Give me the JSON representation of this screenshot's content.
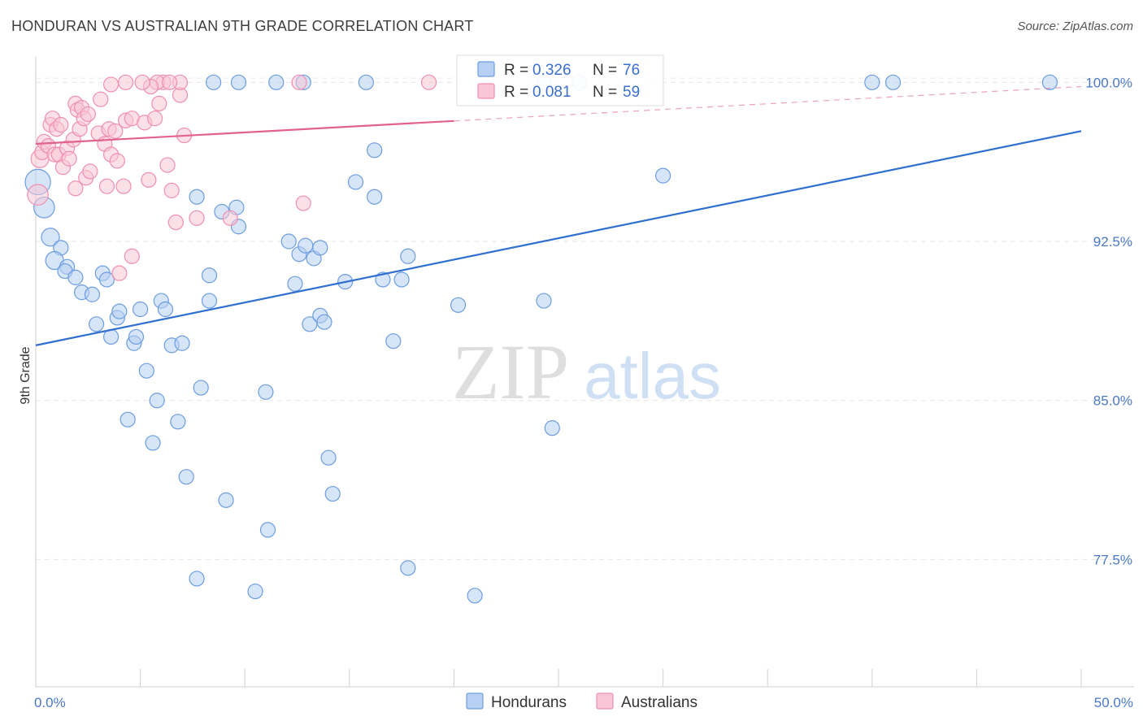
{
  "title": "HONDURAN VS AUSTRALIAN 9TH GRADE CORRELATION CHART",
  "source": "Source: ZipAtlas.com",
  "watermark": {
    "zip": "ZIP",
    "atlas": "atlas"
  },
  "chart_data": {
    "type": "scatter",
    "ylabel": "9th Grade",
    "xlim": [
      0,
      50
    ],
    "ylim": [
      71.5,
      101.2
    ],
    "x_ticks": [
      {
        "value": 0,
        "label": "0.0%"
      },
      {
        "value": 50,
        "label": "50.0%"
      }
    ],
    "x_minor_ticks": [
      0,
      5,
      10,
      15,
      20,
      25,
      30,
      35,
      40,
      45,
      50
    ],
    "y_ticks": [
      {
        "value": 100,
        "label": "100.0%"
      },
      {
        "value": 92.5,
        "label": "92.5%"
      },
      {
        "value": 85,
        "label": "85.0%"
      },
      {
        "value": 77.5,
        "label": "77.5%"
      }
    ],
    "grid": true,
    "legend_placement": "top-center",
    "series": [
      {
        "name": "Hondurans",
        "color": "#6c9de0",
        "fill": "#b7cff2",
        "line_color": "#2f6fcf",
        "R": "0.326",
        "N": "76",
        "trend": {
          "x": [
            0,
            50
          ],
          "y": [
            87.6,
            97.7
          ],
          "dashed_from": null
        },
        "points": [
          [
            0.1,
            95.3,
            3
          ],
          [
            0.4,
            94.1,
            2
          ],
          [
            0.7,
            92.7,
            1.5
          ],
          [
            1.2,
            92.2,
            1
          ],
          [
            0.9,
            91.6,
            1.5
          ],
          [
            1.5,
            91.3,
            1
          ],
          [
            1.4,
            91.1,
            1
          ],
          [
            1.9,
            90.8,
            1
          ],
          [
            2.2,
            90.1,
            1
          ],
          [
            2.7,
            90.0,
            1
          ],
          [
            3.2,
            91.0,
            1
          ],
          [
            3.4,
            90.7,
            1
          ],
          [
            3.9,
            88.9,
            1
          ],
          [
            2.9,
            88.6,
            1
          ],
          [
            4.0,
            89.2,
            1
          ],
          [
            5.0,
            89.3,
            1
          ],
          [
            3.6,
            88.0,
            1
          ],
          [
            4.7,
            87.7,
            1
          ],
          [
            4.8,
            88.0,
            1
          ],
          [
            6.0,
            89.7,
            1
          ],
          [
            6.2,
            89.3,
            1
          ],
          [
            6.5,
            87.6,
            1
          ],
          [
            7.0,
            87.7,
            1
          ],
          [
            5.3,
            86.4,
            1
          ],
          [
            5.8,
            85.0,
            1
          ],
          [
            4.4,
            84.1,
            1
          ],
          [
            5.6,
            83.0,
            1
          ],
          [
            6.8,
            84.0,
            1
          ],
          [
            7.7,
            94.6,
            1
          ],
          [
            8.9,
            93.9,
            1
          ],
          [
            9.6,
            94.1,
            1
          ],
          [
            9.7,
            93.2,
            1
          ],
          [
            8.3,
            90.9,
            1
          ],
          [
            8.3,
            89.7,
            1
          ],
          [
            7.9,
            85.6,
            1
          ],
          [
            7.2,
            81.4,
            1
          ],
          [
            9.1,
            80.3,
            1
          ],
          [
            11.0,
            85.4,
            1
          ],
          [
            11.1,
            78.9,
            1
          ],
          [
            10.5,
            76.0,
            1
          ],
          [
            7.7,
            76.6,
            1
          ],
          [
            11.5,
            100.0,
            1
          ],
          [
            12.8,
            100.0,
            1
          ],
          [
            12.1,
            92.5,
            1
          ],
          [
            12.4,
            90.5,
            1
          ],
          [
            12.6,
            91.9,
            1
          ],
          [
            12.9,
            92.3,
            1
          ],
          [
            13.3,
            91.7,
            1
          ],
          [
            13.1,
            88.6,
            1
          ],
          [
            13.6,
            89.0,
            1
          ],
          [
            13.8,
            88.7,
            1
          ],
          [
            13.6,
            92.2,
            1
          ],
          [
            14.0,
            82.3,
            1
          ],
          [
            14.2,
            80.6,
            1
          ],
          [
            14.8,
            90.6,
            1
          ],
          [
            15.3,
            95.3,
            1
          ],
          [
            15.8,
            100.0,
            1
          ],
          [
            16.2,
            96.8,
            1
          ],
          [
            16.2,
            94.6,
            1
          ],
          [
            16.6,
            90.7,
            1
          ],
          [
            17.1,
            87.8,
            1
          ],
          [
            17.5,
            90.7,
            1
          ],
          [
            17.8,
            91.8,
            1
          ],
          [
            17.8,
            77.1,
            1
          ],
          [
            20.2,
            89.5,
            1
          ],
          [
            21.0,
            75.8,
            1
          ],
          [
            24.3,
            100.0,
            1
          ],
          [
            24.3,
            89.7,
            1
          ],
          [
            24.7,
            83.7,
            1
          ],
          [
            26.0,
            100.0,
            1
          ],
          [
            30.0,
            95.6,
            1
          ],
          [
            40.0,
            100.0,
            1
          ],
          [
            41.0,
            100.0,
            1
          ],
          [
            48.5,
            100.0,
            1
          ],
          [
            8.5,
            100.0,
            1
          ],
          [
            9.7,
            100.0,
            1
          ]
        ]
      },
      {
        "name": "Australians",
        "color": "#ef8fb0",
        "fill": "#f8c6d6",
        "line_color": "#e2628e",
        "R": "0.081",
        "N": "59",
        "trend": {
          "x": [
            0,
            50
          ],
          "y": [
            97.1,
            99.8
          ],
          "dashed_from": 20
        },
        "points": [
          [
            0.1,
            94.7,
            2
          ],
          [
            0.2,
            96.4,
            1.5
          ],
          [
            0.3,
            96.7,
            1
          ],
          [
            0.4,
            97.2,
            1
          ],
          [
            0.6,
            97.0,
            1
          ],
          [
            0.7,
            98.0,
            1
          ],
          [
            0.8,
            98.3,
            1
          ],
          [
            0.9,
            96.6,
            1
          ],
          [
            1.0,
            97.8,
            1
          ],
          [
            1.1,
            96.6,
            1
          ],
          [
            1.2,
            98.0,
            1
          ],
          [
            1.3,
            96.0,
            1
          ],
          [
            1.5,
            96.9,
            1
          ],
          [
            1.6,
            96.4,
            1
          ],
          [
            1.8,
            97.3,
            1
          ],
          [
            1.9,
            99.0,
            1
          ],
          [
            2.0,
            98.7,
            1
          ],
          [
            2.1,
            97.8,
            1
          ],
          [
            2.2,
            98.8,
            1
          ],
          [
            2.3,
            98.3,
            1
          ],
          [
            2.4,
            95.5,
            1
          ],
          [
            1.9,
            95.0,
            1
          ],
          [
            2.5,
            98.5,
            1
          ],
          [
            2.6,
            95.8,
            1
          ],
          [
            3.0,
            97.6,
            1
          ],
          [
            3.1,
            99.2,
            1
          ],
          [
            3.3,
            97.1,
            1
          ],
          [
            3.4,
            95.1,
            1
          ],
          [
            3.5,
            97.8,
            1
          ],
          [
            3.6,
            96.6,
            1
          ],
          [
            3.8,
            97.7,
            1
          ],
          [
            3.9,
            96.3,
            1
          ],
          [
            4.2,
            95.1,
            1
          ],
          [
            4.3,
            98.2,
            1
          ],
          [
            4.6,
            98.3,
            1
          ],
          [
            5.2,
            98.1,
            1
          ],
          [
            5.4,
            95.4,
            1
          ],
          [
            5.7,
            98.3,
            1
          ],
          [
            5.9,
            99.0,
            1
          ],
          [
            6.1,
            100.0,
            1
          ],
          [
            6.3,
            96.1,
            1
          ],
          [
            6.5,
            94.9,
            1
          ],
          [
            6.7,
            93.4,
            1
          ],
          [
            6.9,
            99.4,
            1
          ],
          [
            7.1,
            97.5,
            1
          ],
          [
            7.7,
            93.6,
            1
          ],
          [
            4.0,
            91.0,
            1
          ],
          [
            4.6,
            91.8,
            1
          ],
          [
            6.9,
            100.0,
            1
          ],
          [
            4.3,
            100.0,
            1
          ],
          [
            5.8,
            100.0,
            1
          ],
          [
            6.4,
            100.0,
            1
          ],
          [
            9.3,
            93.6,
            1
          ],
          [
            3.6,
            99.9,
            1
          ],
          [
            5.5,
            99.8,
            1
          ],
          [
            12.6,
            100.0,
            1
          ],
          [
            12.8,
            94.3,
            1
          ],
          [
            18.8,
            100.0,
            1
          ],
          [
            5.1,
            100.0,
            1
          ]
        ]
      }
    ]
  },
  "legend": {
    "r_label": "R =",
    "n_label": "N ="
  }
}
